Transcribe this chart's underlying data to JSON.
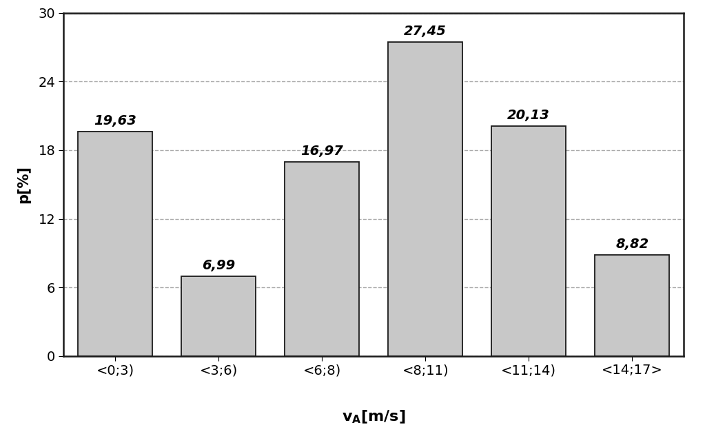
{
  "categories": [
    "<0;3)",
    "<3;6)",
    "<6;8)",
    "<8;11)",
    "<11;14)",
    "<14;17>"
  ],
  "values": [
    19.63,
    6.99,
    16.97,
    27.45,
    20.13,
    8.82
  ],
  "labels": [
    "19,63",
    "6,99",
    "16,97",
    "27,45",
    "20,13",
    "8,82"
  ],
  "bar_color": "#c8c8c8",
  "bar_edgecolor": "#1a1a1a",
  "ylabel": "p[%]",
  "ylim": [
    0,
    30
  ],
  "yticks": [
    0,
    6,
    12,
    18,
    24,
    30
  ],
  "grid_color": "#aaaaaa",
  "grid_linestyle": "--",
  "background_color": "#ffffff",
  "label_fontsize": 15,
  "tick_fontsize": 14,
  "annotation_fontsize": 14,
  "bar_width": 0.72
}
